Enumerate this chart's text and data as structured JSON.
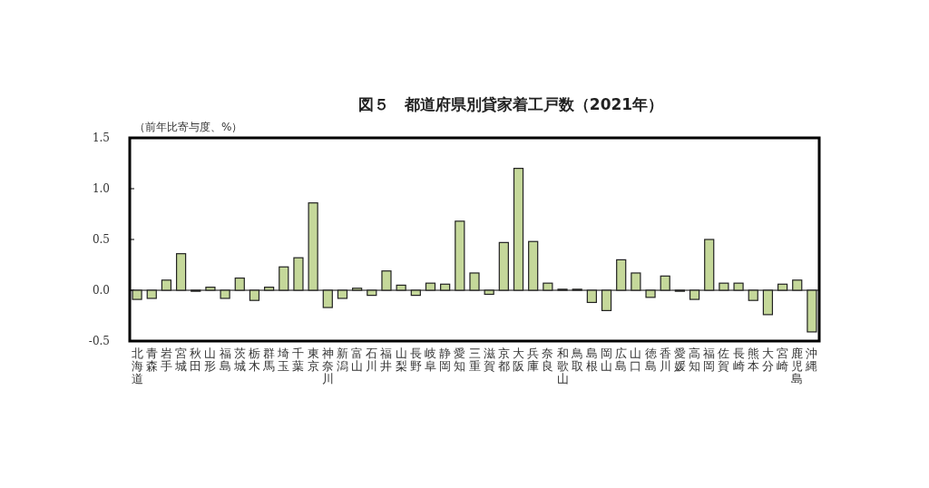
{
  "chart_data": {
    "type": "bar",
    "title": "図５　都道府県別貸家着工戸数（2021年）",
    "ylabel": "（前年比寄与度、%）",
    "categories": [
      "北海道",
      "青森",
      "岩手",
      "宮城",
      "秋田",
      "山形",
      "福島",
      "茨城",
      "栃木",
      "群馬",
      "埼玉",
      "千葉",
      "東京",
      "神奈川",
      "新潟",
      "富山",
      "石川",
      "福井",
      "山梨",
      "長野",
      "岐阜",
      "静岡",
      "愛知",
      "三重",
      "滋賀",
      "京都",
      "大阪",
      "兵庫",
      "奈良",
      "和歌山",
      "鳥取",
      "島根",
      "岡山",
      "広島",
      "山口",
      "徳島",
      "香川",
      "愛媛",
      "高知",
      "福岡",
      "佐賀",
      "長崎",
      "熊本",
      "大分",
      "宮崎",
      "鹿児島",
      "沖縄"
    ],
    "values": [
      -0.09,
      -0.08,
      0.1,
      0.36,
      -0.01,
      0.03,
      -0.08,
      0.12,
      -0.1,
      0.03,
      0.23,
      0.32,
      0.86,
      -0.17,
      -0.08,
      0.02,
      -0.05,
      0.19,
      0.05,
      -0.05,
      0.07,
      0.06,
      0.68,
      0.17,
      -0.04,
      0.47,
      1.2,
      0.48,
      0.07,
      0.01,
      0.01,
      -0.12,
      -0.2,
      0.3,
      0.17,
      -0.07,
      0.14,
      -0.01,
      -0.09,
      0.5,
      0.07,
      0.07,
      -0.1,
      -0.24,
      0.06,
      0.1,
      -0.41
    ],
    "color": "#c5d89a",
    "ylim": [
      -0.5,
      1.5
    ],
    "yticks": [
      {
        "value": 1.5,
        "label": "1.5"
      },
      {
        "value": 1.0,
        "label": "1.0"
      },
      {
        "value": 0.5,
        "label": "0.5"
      },
      {
        "value": 0.0,
        "label": "0.0"
      },
      {
        "value": -0.5,
        "label": "-0.5"
      }
    ]
  }
}
